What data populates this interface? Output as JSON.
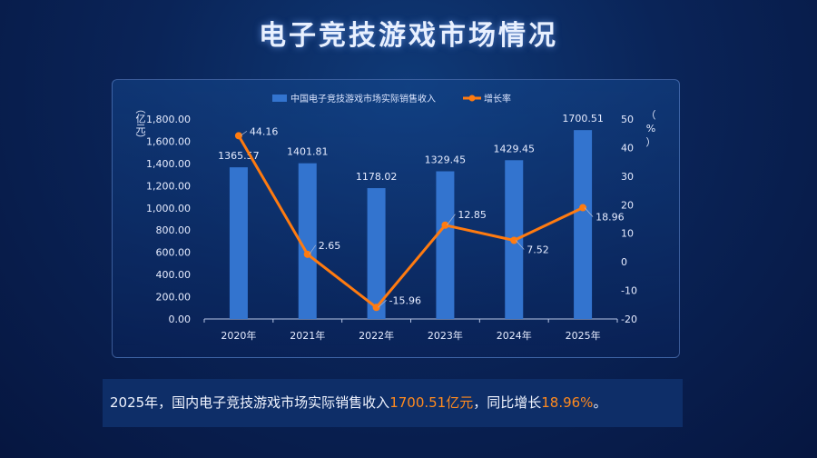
{
  "title": "电子竞技游戏市场情况",
  "chart_data": {
    "type": "bar+line",
    "categories": [
      "2020年",
      "2021年",
      "2022年",
      "2023年",
      "2024年",
      "2025年"
    ],
    "series": [
      {
        "name": "中国电子竞技游戏市场实际销售收入",
        "type": "bar",
        "axis": "left",
        "values": [
          1365.57,
          1401.81,
          1178.02,
          1329.45,
          1429.45,
          1700.51
        ],
        "labels": [
          "1365.57",
          "1401.81",
          "1178.02",
          "1329.45",
          "1429.45",
          "1700.51"
        ],
        "color": "#3374cf"
      },
      {
        "name": "增长率",
        "type": "line",
        "axis": "right",
        "values": [
          44.16,
          2.65,
          -15.96,
          12.85,
          7.52,
          18.96
        ],
        "labels": [
          "44.16",
          "2.65",
          "-15.96",
          "12.85",
          "7.52",
          "18.96"
        ],
        "color": "#ff7b10"
      }
    ],
    "left_axis": {
      "label": "（亿元）",
      "ylim": [
        0,
        1800
      ],
      "ticks": [
        "0.00",
        "200.00",
        "400.00",
        "600.00",
        "800.00",
        "1,000.00",
        "1,200.00",
        "1,400.00",
        "1,600.00",
        "1,800.00"
      ]
    },
    "right_axis": {
      "label": "（%）",
      "ylim": [
        -20,
        50
      ],
      "ticks": [
        "-20",
        "-10",
        "0",
        "10",
        "20",
        "30",
        "40",
        "50"
      ]
    },
    "legend": "top-center",
    "grid": false
  },
  "summary": {
    "prefix": "2025年，国内电子竞技游戏市场实际销售收入",
    "revenue": "1700.51亿元",
    "middle": "，同比增长",
    "growth": "18.96%",
    "suffix": "。"
  }
}
